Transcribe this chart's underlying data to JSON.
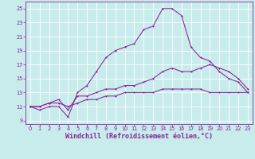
{
  "xlabel": "Windchill (Refroidissement éolien,°C)",
  "background_color": "#c8ecec",
  "line_color": "#882299",
  "grid_color": "#ffffff",
  "xlim": [
    -0.5,
    23.5
  ],
  "ylim": [
    8.5,
    26
  ],
  "xticks": [
    0,
    1,
    2,
    3,
    4,
    5,
    6,
    7,
    8,
    9,
    10,
    11,
    12,
    13,
    14,
    15,
    16,
    17,
    18,
    19,
    20,
    21,
    22,
    23
  ],
  "yticks": [
    9,
    11,
    13,
    15,
    17,
    19,
    21,
    23,
    25
  ],
  "line1_x": [
    0,
    1,
    2,
    3,
    4,
    5,
    6,
    7,
    8,
    9,
    10,
    11,
    12,
    13,
    14,
    15,
    16,
    17,
    18,
    19,
    20,
    21,
    22,
    23
  ],
  "line1_y": [
    11,
    10.5,
    11,
    11,
    9.5,
    13,
    14,
    16,
    18,
    19,
    19.5,
    20,
    22,
    22.5,
    25,
    25,
    24,
    19.5,
    18,
    17.5,
    16,
    15,
    14.5,
    13
  ],
  "line2_x": [
    0,
    1,
    2,
    3,
    4,
    5,
    6,
    7,
    8,
    9,
    10,
    11,
    12,
    13,
    14,
    15,
    16,
    17,
    18,
    19,
    20,
    21,
    22,
    23
  ],
  "line2_y": [
    11,
    11,
    11.5,
    12,
    10.5,
    12.5,
    12.5,
    13,
    13.5,
    13.5,
    14,
    14,
    14.5,
    15,
    16,
    16.5,
    16,
    16,
    16.5,
    17,
    16.5,
    16,
    15,
    13.5
  ],
  "line3_x": [
    0,
    1,
    2,
    3,
    4,
    5,
    6,
    7,
    8,
    9,
    10,
    11,
    12,
    13,
    14,
    15,
    16,
    17,
    18,
    19,
    20,
    21,
    22,
    23
  ],
  "line3_y": [
    11,
    11,
    11.5,
    11.5,
    11,
    11.5,
    12,
    12,
    12.5,
    12.5,
    13,
    13,
    13,
    13,
    13.5,
    13.5,
    13.5,
    13.5,
    13.5,
    13,
    13,
    13,
    13,
    13
  ],
  "tick_fontsize": 4.8,
  "label_fontsize": 6.0
}
